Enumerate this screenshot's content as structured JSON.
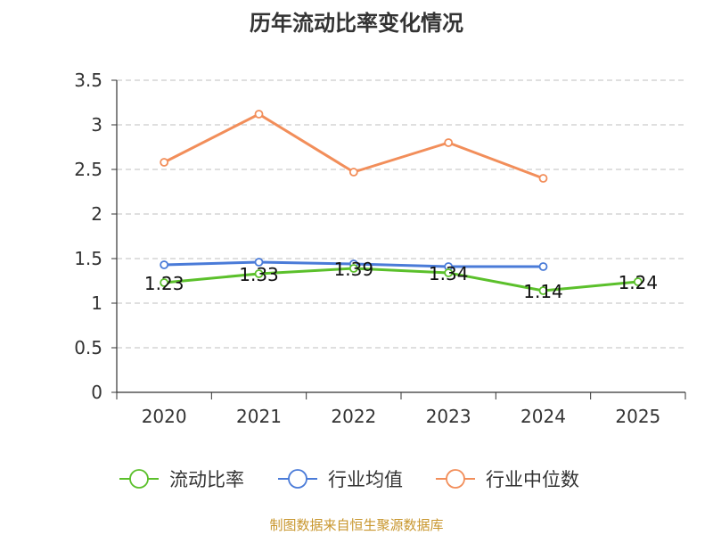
{
  "chart_data": {
    "type": "line",
    "title": "历年流动比率变化情况",
    "categories": [
      "2020",
      "2021",
      "2022",
      "2023",
      "2024",
      "2025"
    ],
    "ylim": [
      0,
      3.5
    ],
    "yticks": [
      0,
      0.5,
      1,
      1.5,
      2,
      2.5,
      3,
      3.5
    ],
    "ytick_labels": [
      "0",
      "0.5",
      "1",
      "1.5",
      "2",
      "2.5",
      "3",
      "3.5"
    ],
    "grid": true,
    "legend_position": "bottom",
    "series": [
      {
        "name": "流动比率",
        "color": "#5bc02b",
        "values": [
          1.23,
          1.33,
          1.39,
          1.34,
          1.14,
          1.24
        ],
        "labels": [
          "1.23",
          "1.33",
          "1.39",
          "1.34",
          "1.14",
          "1.24"
        ]
      },
      {
        "name": "行业均值",
        "color": "#4a7bd8",
        "values": [
          1.43,
          1.46,
          1.44,
          1.41,
          1.41,
          null
        ]
      },
      {
        "name": "行业中位数",
        "color": "#f28e5a",
        "values": [
          2.58,
          3.12,
          2.47,
          2.8,
          2.4,
          null
        ]
      }
    ]
  },
  "footer": {
    "source": "制图数据来自恒生聚源数据库",
    "source_color": "#c8962d"
  }
}
